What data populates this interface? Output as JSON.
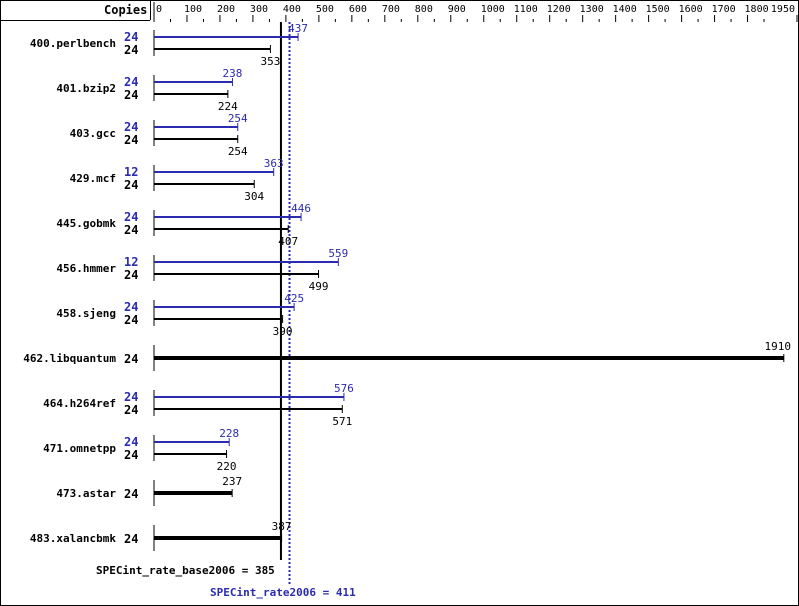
{
  "chart_data": {
    "type": "bar",
    "orientation": "horizontal",
    "axis_header": "Copies",
    "xlim": [
      0,
      1950
    ],
    "ticks": [
      0,
      100,
      200,
      300,
      400,
      500,
      600,
      700,
      800,
      900,
      1000,
      1100,
      1200,
      1300,
      1400,
      1500,
      1600,
      1700,
      1800,
      1950
    ],
    "benchmarks": [
      {
        "name": "400.perlbench",
        "peak_copies": 24,
        "peak": 437,
        "base_copies": 24,
        "base": 353
      },
      {
        "name": "401.bzip2",
        "peak_copies": 24,
        "peak": 238,
        "base_copies": 24,
        "base": 224
      },
      {
        "name": "403.gcc",
        "peak_copies": 24,
        "peak": 254,
        "base_copies": 24,
        "base": 254
      },
      {
        "name": "429.mcf",
        "peak_copies": 12,
        "peak": 363,
        "base_copies": 24,
        "base": 304
      },
      {
        "name": "445.gobmk",
        "peak_copies": 24,
        "peak": 446,
        "base_copies": 24,
        "base": 407
      },
      {
        "name": "456.hmmer",
        "peak_copies": 12,
        "peak": 559,
        "base_copies": 24,
        "base": 499
      },
      {
        "name": "458.sjeng",
        "peak_copies": 24,
        "peak": 425,
        "base_copies": 24,
        "base": 390
      },
      {
        "name": "462.libquantum",
        "base_copies": 24,
        "base": 1910
      },
      {
        "name": "464.h264ref",
        "peak_copies": 24,
        "peak": 576,
        "base_copies": 24,
        "base": 571
      },
      {
        "name": "471.omnetpp",
        "peak_copies": 24,
        "peak": 228,
        "base_copies": 24,
        "base": 220
      },
      {
        "name": "473.astar",
        "base_copies": 24,
        "base": 237
      },
      {
        "name": "483.xalancbmk",
        "base_copies": 24,
        "base": 387
      }
    ],
    "base_metric": {
      "label": "SPECint_rate_base2006 = 385",
      "value": 385
    },
    "peak_metric": {
      "label": "SPECint_rate2006 = 411",
      "value": 411
    },
    "colors": {
      "peak": "#2b2bb0",
      "base": "#000000"
    }
  }
}
